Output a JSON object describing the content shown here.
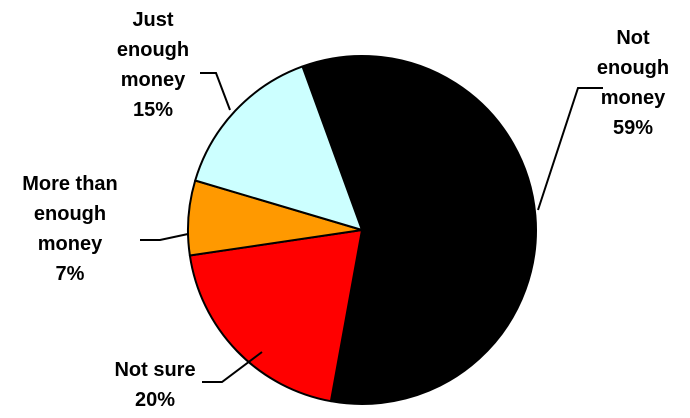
{
  "chart_data": {
    "type": "pie",
    "start_angle_deg": -20,
    "direction": "clockwise",
    "slices": [
      {
        "label_lines": [
          "Not",
          "enough",
          "money"
        ],
        "value_label": "59%",
        "value": 59,
        "color": "#000000"
      },
      {
        "label_lines": [
          "Not sure"
        ],
        "value_label": "20%",
        "value": 20,
        "color": "#ff0000"
      },
      {
        "label_lines": [
          "More than",
          "enough",
          "money"
        ],
        "value_label": "7%",
        "value": 7,
        "color": "#ff9900"
      },
      {
        "label_lines": [
          "Just",
          "enough",
          "money"
        ],
        "value_label": "15%",
        "value": 15,
        "color": "#ccffff"
      }
    ],
    "title": "",
    "legend": "none",
    "data_labels": "outside with leader lines"
  }
}
